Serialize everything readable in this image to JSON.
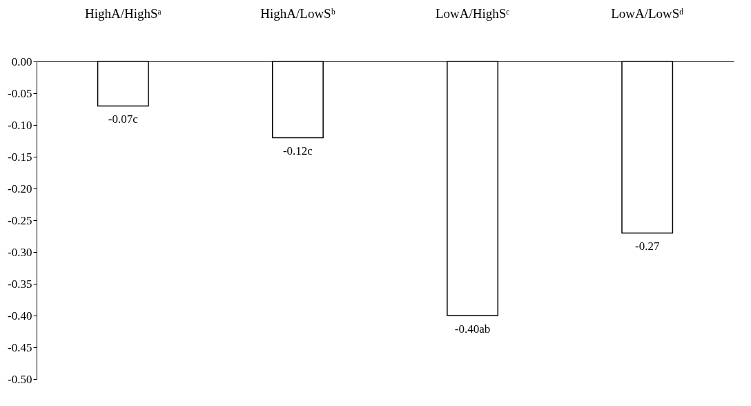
{
  "chart_data": {
    "type": "bar",
    "categories": [
      "HighA/HighSᵃ",
      "HighA/LowSᵇ",
      "LowA/HighSᶜ",
      "LowA/LowSᵈ"
    ],
    "values": [
      -0.07,
      -0.12,
      -0.4,
      -0.27
    ],
    "value_labels": [
      "-0.07c",
      "-0.12c",
      "-0.40ab",
      "-0.27"
    ],
    "color": "#ffffff",
    "ylim": [
      -0.5,
      0
    ],
    "yticks": [
      {
        "value": 0,
        "label": "0.00"
      },
      {
        "value": -0.05,
        "label": "-0.05"
      },
      {
        "value": -0.1,
        "label": "-0.10"
      },
      {
        "value": -0.15,
        "label": "-0.15"
      },
      {
        "value": -0.2,
        "label": "-0.20"
      },
      {
        "value": -0.25,
        "label": "-0.25"
      },
      {
        "value": -0.3,
        "label": "-0.30"
      },
      {
        "value": -0.35,
        "label": "-0.35"
      },
      {
        "value": -0.4,
        "label": "-0.40"
      },
      {
        "value": -0.45,
        "label": "-0.45"
      },
      {
        "value": -0.5,
        "label": "-0.50"
      }
    ],
    "grid": false
  }
}
